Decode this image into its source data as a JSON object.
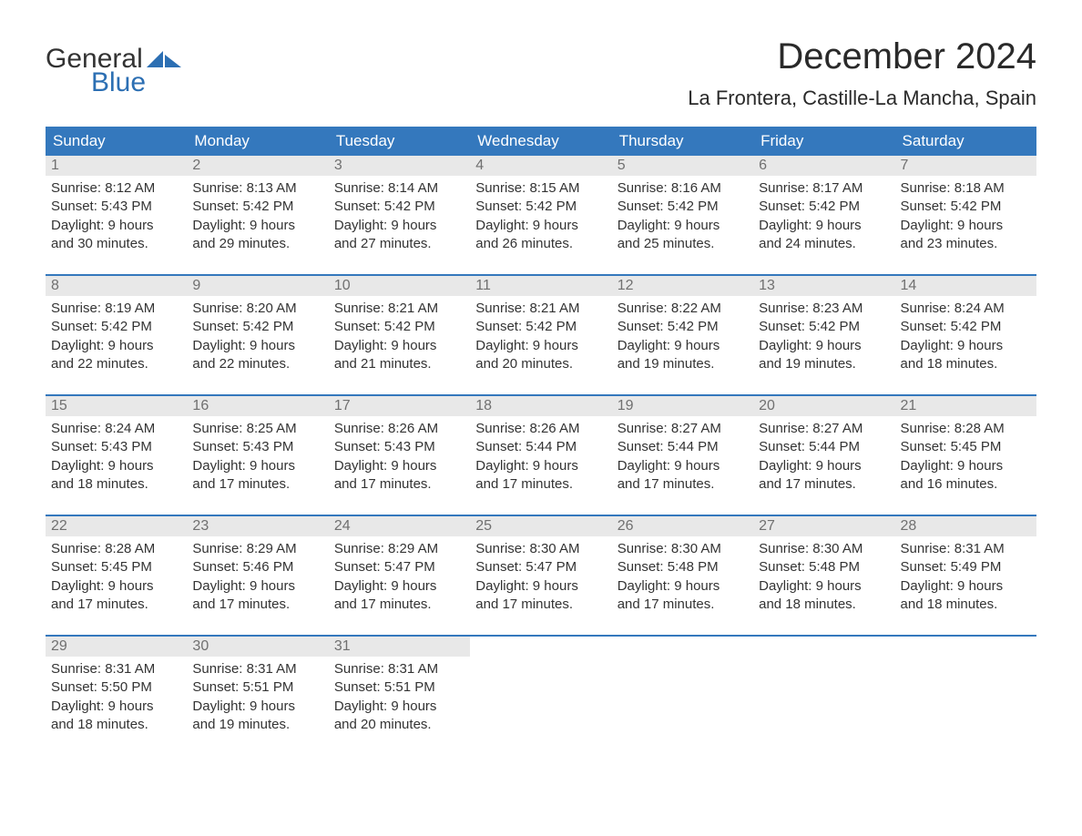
{
  "logo": {
    "word1": "General",
    "word2": "Blue",
    "brand_color": "#2c6fb3"
  },
  "title": "December 2024",
  "location": "La Frontera, Castille-La Mancha, Spain",
  "colors": {
    "header_bg": "#3478bd",
    "header_text": "#ffffff",
    "daynum_bg": "#e8e8e8",
    "daynum_text": "#707070",
    "body_text": "#333333",
    "week_border": "#3478bd",
    "page_bg": "#ffffff"
  },
  "typography": {
    "title_fontsize": 40,
    "location_fontsize": 22,
    "day_header_fontsize": 17,
    "daynum_fontsize": 16,
    "cell_fontsize": 15,
    "font_family": "Arial"
  },
  "day_headers": [
    "Sunday",
    "Monday",
    "Tuesday",
    "Wednesday",
    "Thursday",
    "Friday",
    "Saturday"
  ],
  "weeks": [
    [
      {
        "day": "1",
        "sunrise": "Sunrise: 8:12 AM",
        "sunset": "Sunset: 5:43 PM",
        "daylight1": "Daylight: 9 hours",
        "daylight2": "and 30 minutes."
      },
      {
        "day": "2",
        "sunrise": "Sunrise: 8:13 AM",
        "sunset": "Sunset: 5:42 PM",
        "daylight1": "Daylight: 9 hours",
        "daylight2": "and 29 minutes."
      },
      {
        "day": "3",
        "sunrise": "Sunrise: 8:14 AM",
        "sunset": "Sunset: 5:42 PM",
        "daylight1": "Daylight: 9 hours",
        "daylight2": "and 27 minutes."
      },
      {
        "day": "4",
        "sunrise": "Sunrise: 8:15 AM",
        "sunset": "Sunset: 5:42 PM",
        "daylight1": "Daylight: 9 hours",
        "daylight2": "and 26 minutes."
      },
      {
        "day": "5",
        "sunrise": "Sunrise: 8:16 AM",
        "sunset": "Sunset: 5:42 PM",
        "daylight1": "Daylight: 9 hours",
        "daylight2": "and 25 minutes."
      },
      {
        "day": "6",
        "sunrise": "Sunrise: 8:17 AM",
        "sunset": "Sunset: 5:42 PM",
        "daylight1": "Daylight: 9 hours",
        "daylight2": "and 24 minutes."
      },
      {
        "day": "7",
        "sunrise": "Sunrise: 8:18 AM",
        "sunset": "Sunset: 5:42 PM",
        "daylight1": "Daylight: 9 hours",
        "daylight2": "and 23 minutes."
      }
    ],
    [
      {
        "day": "8",
        "sunrise": "Sunrise: 8:19 AM",
        "sunset": "Sunset: 5:42 PM",
        "daylight1": "Daylight: 9 hours",
        "daylight2": "and 22 minutes."
      },
      {
        "day": "9",
        "sunrise": "Sunrise: 8:20 AM",
        "sunset": "Sunset: 5:42 PM",
        "daylight1": "Daylight: 9 hours",
        "daylight2": "and 22 minutes."
      },
      {
        "day": "10",
        "sunrise": "Sunrise: 8:21 AM",
        "sunset": "Sunset: 5:42 PM",
        "daylight1": "Daylight: 9 hours",
        "daylight2": "and 21 minutes."
      },
      {
        "day": "11",
        "sunrise": "Sunrise: 8:21 AM",
        "sunset": "Sunset: 5:42 PM",
        "daylight1": "Daylight: 9 hours",
        "daylight2": "and 20 minutes."
      },
      {
        "day": "12",
        "sunrise": "Sunrise: 8:22 AM",
        "sunset": "Sunset: 5:42 PM",
        "daylight1": "Daylight: 9 hours",
        "daylight2": "and 19 minutes."
      },
      {
        "day": "13",
        "sunrise": "Sunrise: 8:23 AM",
        "sunset": "Sunset: 5:42 PM",
        "daylight1": "Daylight: 9 hours",
        "daylight2": "and 19 minutes."
      },
      {
        "day": "14",
        "sunrise": "Sunrise: 8:24 AM",
        "sunset": "Sunset: 5:42 PM",
        "daylight1": "Daylight: 9 hours",
        "daylight2": "and 18 minutes."
      }
    ],
    [
      {
        "day": "15",
        "sunrise": "Sunrise: 8:24 AM",
        "sunset": "Sunset: 5:43 PM",
        "daylight1": "Daylight: 9 hours",
        "daylight2": "and 18 minutes."
      },
      {
        "day": "16",
        "sunrise": "Sunrise: 8:25 AM",
        "sunset": "Sunset: 5:43 PM",
        "daylight1": "Daylight: 9 hours",
        "daylight2": "and 17 minutes."
      },
      {
        "day": "17",
        "sunrise": "Sunrise: 8:26 AM",
        "sunset": "Sunset: 5:43 PM",
        "daylight1": "Daylight: 9 hours",
        "daylight2": "and 17 minutes."
      },
      {
        "day": "18",
        "sunrise": "Sunrise: 8:26 AM",
        "sunset": "Sunset: 5:44 PM",
        "daylight1": "Daylight: 9 hours",
        "daylight2": "and 17 minutes."
      },
      {
        "day": "19",
        "sunrise": "Sunrise: 8:27 AM",
        "sunset": "Sunset: 5:44 PM",
        "daylight1": "Daylight: 9 hours",
        "daylight2": "and 17 minutes."
      },
      {
        "day": "20",
        "sunrise": "Sunrise: 8:27 AM",
        "sunset": "Sunset: 5:44 PM",
        "daylight1": "Daylight: 9 hours",
        "daylight2": "and 17 minutes."
      },
      {
        "day": "21",
        "sunrise": "Sunrise: 8:28 AM",
        "sunset": "Sunset: 5:45 PM",
        "daylight1": "Daylight: 9 hours",
        "daylight2": "and 16 minutes."
      }
    ],
    [
      {
        "day": "22",
        "sunrise": "Sunrise: 8:28 AM",
        "sunset": "Sunset: 5:45 PM",
        "daylight1": "Daylight: 9 hours",
        "daylight2": "and 17 minutes."
      },
      {
        "day": "23",
        "sunrise": "Sunrise: 8:29 AM",
        "sunset": "Sunset: 5:46 PM",
        "daylight1": "Daylight: 9 hours",
        "daylight2": "and 17 minutes."
      },
      {
        "day": "24",
        "sunrise": "Sunrise: 8:29 AM",
        "sunset": "Sunset: 5:47 PM",
        "daylight1": "Daylight: 9 hours",
        "daylight2": "and 17 minutes."
      },
      {
        "day": "25",
        "sunrise": "Sunrise: 8:30 AM",
        "sunset": "Sunset: 5:47 PM",
        "daylight1": "Daylight: 9 hours",
        "daylight2": "and 17 minutes."
      },
      {
        "day": "26",
        "sunrise": "Sunrise: 8:30 AM",
        "sunset": "Sunset: 5:48 PM",
        "daylight1": "Daylight: 9 hours",
        "daylight2": "and 17 minutes."
      },
      {
        "day": "27",
        "sunrise": "Sunrise: 8:30 AM",
        "sunset": "Sunset: 5:48 PM",
        "daylight1": "Daylight: 9 hours",
        "daylight2": "and 18 minutes."
      },
      {
        "day": "28",
        "sunrise": "Sunrise: 8:31 AM",
        "sunset": "Sunset: 5:49 PM",
        "daylight1": "Daylight: 9 hours",
        "daylight2": "and 18 minutes."
      }
    ],
    [
      {
        "day": "29",
        "sunrise": "Sunrise: 8:31 AM",
        "sunset": "Sunset: 5:50 PM",
        "daylight1": "Daylight: 9 hours",
        "daylight2": "and 18 minutes."
      },
      {
        "day": "30",
        "sunrise": "Sunrise: 8:31 AM",
        "sunset": "Sunset: 5:51 PM",
        "daylight1": "Daylight: 9 hours",
        "daylight2": "and 19 minutes."
      },
      {
        "day": "31",
        "sunrise": "Sunrise: 8:31 AM",
        "sunset": "Sunset: 5:51 PM",
        "daylight1": "Daylight: 9 hours",
        "daylight2": "and 20 minutes."
      },
      {
        "empty": true
      },
      {
        "empty": true
      },
      {
        "empty": true
      },
      {
        "empty": true
      }
    ]
  ]
}
